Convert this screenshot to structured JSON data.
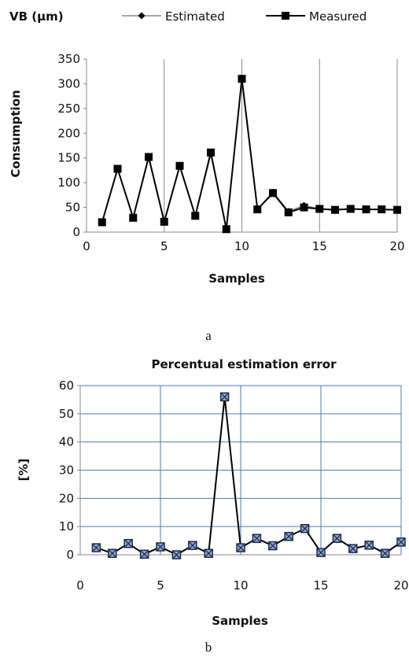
{
  "chart_data": [
    {
      "type": "line",
      "panel_caption": "a",
      "corner_label": "VB (µm)",
      "xlabel": "Samples",
      "ylabel": "Consumption",
      "xlim": [
        0,
        20
      ],
      "ylim": [
        0,
        350
      ],
      "xticks": [
        0,
        5,
        10,
        15,
        20
      ],
      "yticks": [
        0,
        50,
        100,
        150,
        200,
        250,
        300,
        350
      ],
      "grid": "vertical",
      "legend": "top",
      "x": [
        1,
        2,
        3,
        4,
        5,
        6,
        7,
        8,
        9,
        10,
        11,
        12,
        13,
        14,
        15,
        16,
        17,
        18,
        19,
        20
      ],
      "series": [
        {
          "name": "Estimated",
          "marker": "diamond",
          "color": "#888888",
          "values": [
            20,
            127,
            29,
            150,
            21,
            133,
            33,
            158,
            6,
            310,
            46,
            81,
            42,
            54,
            47,
            46,
            47,
            46,
            46,
            45
          ]
        },
        {
          "name": "Measured",
          "marker": "square",
          "color": "#000000",
          "values": [
            20,
            128,
            29,
            152,
            21,
            134,
            33,
            161,
            6,
            310,
            46,
            79,
            40,
            50,
            47,
            45,
            47,
            46,
            46,
            45
          ]
        }
      ]
    },
    {
      "type": "line",
      "panel_caption": "b",
      "title": "Percentual estimation error",
      "xlabel": "Samples",
      "ylabel": "[%]",
      "xlim": [
        0,
        20
      ],
      "ylim": [
        0,
        60
      ],
      "xticks": [
        0,
        5,
        10,
        15,
        20
      ],
      "yticks": [
        0,
        10,
        20,
        30,
        40,
        50,
        60
      ],
      "grid": "both",
      "legend": "none",
      "x": [
        1,
        2,
        3,
        4,
        5,
        6,
        7,
        8,
        9,
        10,
        11,
        12,
        13,
        14,
        15,
        16,
        17,
        18,
        19,
        20
      ],
      "series": [
        {
          "marker": "square-x",
          "color": "#1F2A44",
          "values": [
            2.5,
            0.5,
            4,
            0.2,
            2.8,
            0,
            3.3,
            0.5,
            56,
            2.5,
            5.8,
            3.2,
            6.5,
            9.3,
            0.8,
            5.8,
            2.2,
            3.4,
            0.5,
            4.5
          ]
        }
      ]
    }
  ]
}
